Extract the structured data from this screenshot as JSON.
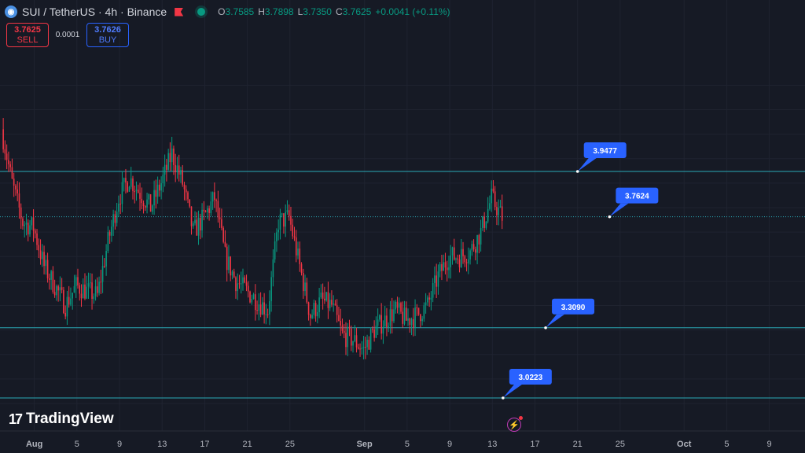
{
  "header": {
    "symbol": "SUI / TetherUS · 4h · Binance",
    "icon": "sui-coin-icon",
    "o_label": "O",
    "o": "3.7585",
    "h_label": "H",
    "h": "3.7898",
    "l_label": "L",
    "l": "3.7350",
    "c_label": "C",
    "c": "3.7625",
    "change": "+0.0041 (+0.11%)"
  },
  "trade": {
    "sell_price": "3.7625",
    "sell_label": "SELL",
    "spread": "0.0001",
    "buy_price": "3.7626",
    "buy_label": "BUY"
  },
  "logo": {
    "mark": "17",
    "text": "TradingView"
  },
  "colors": {
    "background": "#161a25",
    "up": "#089981",
    "down": "#f23645",
    "level_line": "#2aa9b7",
    "label_bg": "#2962ff",
    "axis_text": "#b2b5be"
  },
  "chart_data": {
    "type": "candlestick",
    "symbol": "SUI/USDT",
    "interval": "4h",
    "ylim": [
      2.95,
      4.32
    ],
    "grid": true,
    "time_axis": {
      "start_date": "2024-07-29",
      "end_date": "2024-10-10",
      "ticks": [
        {
          "label": "Aug",
          "date": "2024-08-01"
        },
        {
          "label": "5",
          "date": "2024-08-05"
        },
        {
          "label": "9",
          "date": "2024-08-09"
        },
        {
          "label": "13",
          "date": "2024-08-13"
        },
        {
          "label": "17",
          "date": "2024-08-17"
        },
        {
          "label": "21",
          "date": "2024-08-21"
        },
        {
          "label": "25",
          "date": "2024-08-25"
        },
        {
          "label": "Sep",
          "date": "2024-09-01"
        },
        {
          "label": "5",
          "date": "2024-09-05"
        },
        {
          "label": "9",
          "date": "2024-09-09"
        },
        {
          "label": "13",
          "date": "2024-09-13"
        },
        {
          "label": "17",
          "date": "2024-09-17"
        },
        {
          "label": "21",
          "date": "2024-09-21"
        },
        {
          "label": "25",
          "date": "2024-09-25"
        },
        {
          "label": "Oct",
          "date": "2024-10-01"
        },
        {
          "label": "5",
          "date": "2024-10-05"
        },
        {
          "label": "9",
          "date": "2024-10-09"
        }
      ]
    },
    "levels": [
      {
        "price": 3.9477,
        "label": "3.9477",
        "label_date": "2024-09-21"
      },
      {
        "price": 3.7624,
        "label": "3.7624",
        "label_date": "2024-09-24",
        "dotted": true
      },
      {
        "price": 3.309,
        "label": "3.3090",
        "label_date": "2024-09-18"
      },
      {
        "price": 3.0223,
        "label": "3.0223",
        "label_date": "2024-09-14"
      }
    ],
    "anchors": [
      {
        "date": "2024-07-29",
        "price": 4.12
      },
      {
        "date": "2024-07-30",
        "price": 3.9
      },
      {
        "date": "2024-07-31",
        "price": 3.74
      },
      {
        "date": "2024-08-01",
        "price": 3.72
      },
      {
        "date": "2024-08-02",
        "price": 3.56
      },
      {
        "date": "2024-08-03",
        "price": 3.48
      },
      {
        "date": "2024-08-04",
        "price": 3.4
      },
      {
        "date": "2024-08-05",
        "price": 3.48
      },
      {
        "date": "2024-08-06",
        "price": 3.46
      },
      {
        "date": "2024-08-07",
        "price": 3.44
      },
      {
        "date": "2024-08-08",
        "price": 3.66
      },
      {
        "date": "2024-08-09",
        "price": 3.84
      },
      {
        "date": "2024-08-10",
        "price": 3.92
      },
      {
        "date": "2024-08-11",
        "price": 3.86
      },
      {
        "date": "2024-08-12",
        "price": 3.8
      },
      {
        "date": "2024-08-13",
        "price": 3.9
      },
      {
        "date": "2024-08-14",
        "price": 4.02
      },
      {
        "date": "2024-08-15",
        "price": 3.9
      },
      {
        "date": "2024-08-16",
        "price": 3.7
      },
      {
        "date": "2024-08-17",
        "price": 3.76
      },
      {
        "date": "2024-08-18",
        "price": 3.84
      },
      {
        "date": "2024-08-19",
        "price": 3.6
      },
      {
        "date": "2024-08-20",
        "price": 3.5
      },
      {
        "date": "2024-08-21",
        "price": 3.46
      },
      {
        "date": "2024-08-22",
        "price": 3.42
      },
      {
        "date": "2024-08-23",
        "price": 3.38
      },
      {
        "date": "2024-08-24",
        "price": 3.74
      },
      {
        "date": "2024-08-25",
        "price": 3.76
      },
      {
        "date": "2024-08-26",
        "price": 3.56
      },
      {
        "date": "2024-08-27",
        "price": 3.36
      },
      {
        "date": "2024-08-28",
        "price": 3.42
      },
      {
        "date": "2024-08-29",
        "price": 3.4
      },
      {
        "date": "2024-08-30",
        "price": 3.28
      },
      {
        "date": "2024-08-31",
        "price": 3.26
      },
      {
        "date": "2024-09-01",
        "price": 3.22
      },
      {
        "date": "2024-09-02",
        "price": 3.3
      },
      {
        "date": "2024-09-03",
        "price": 3.34
      },
      {
        "date": "2024-09-04",
        "price": 3.38
      },
      {
        "date": "2024-09-05",
        "price": 3.34
      },
      {
        "date": "2024-09-06",
        "price": 3.36
      },
      {
        "date": "2024-09-07",
        "price": 3.4
      },
      {
        "date": "2024-09-08",
        "price": 3.52
      },
      {
        "date": "2024-09-09",
        "price": 3.6
      },
      {
        "date": "2024-09-10",
        "price": 3.6
      },
      {
        "date": "2024-09-11",
        "price": 3.62
      },
      {
        "date": "2024-09-12",
        "price": 3.7
      },
      {
        "date": "2024-09-13",
        "price": 3.84
      },
      {
        "date": "2024-09-14",
        "price": 3.76
      }
    ]
  }
}
